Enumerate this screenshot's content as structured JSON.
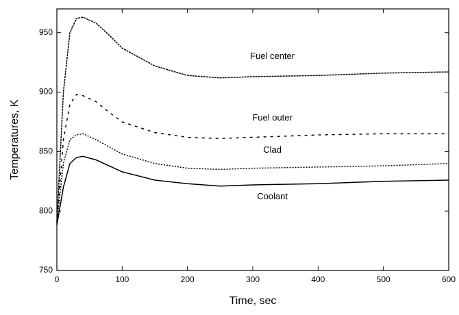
{
  "chart_data": {
    "type": "line",
    "xlabel": "Time, sec",
    "ylabel": "Temperatures, K",
    "x": [
      0,
      10,
      20,
      30,
      40,
      60,
      80,
      100,
      150,
      200,
      250,
      300,
      400,
      500,
      600
    ],
    "series": [
      {
        "name": "Fuel center",
        "color": "#000000",
        "values": [
          790,
          900,
          950,
          962,
          963,
          958,
          948,
          937,
          922,
          914,
          912,
          913,
          914,
          916,
          917
        ]
      },
      {
        "name": "Fuel outer",
        "color": "#000000",
        "values": [
          790,
          860,
          890,
          898,
          897,
          892,
          883,
          875,
          866,
          862,
          861,
          862,
          864,
          865,
          865
        ]
      },
      {
        "name": "Clad",
        "color": "#000000",
        "values": [
          790,
          840,
          860,
          864,
          865,
          860,
          854,
          848,
          840,
          836,
          835,
          836,
          837,
          838,
          840
        ]
      },
      {
        "name": "Coolant",
        "color": "#000000",
        "values": [
          788,
          820,
          840,
          845,
          846,
          843,
          838,
          833,
          826,
          823,
          821,
          822,
          823,
          825,
          826
        ]
      }
    ],
    "xlim": [
      0,
      600
    ],
    "xticks": [
      0,
      100,
      200,
      300,
      400,
      500,
      600
    ],
    "ylim": [
      750,
      970
    ],
    "yticks": [
      750,
      800,
      850,
      900,
      950
    ]
  }
}
